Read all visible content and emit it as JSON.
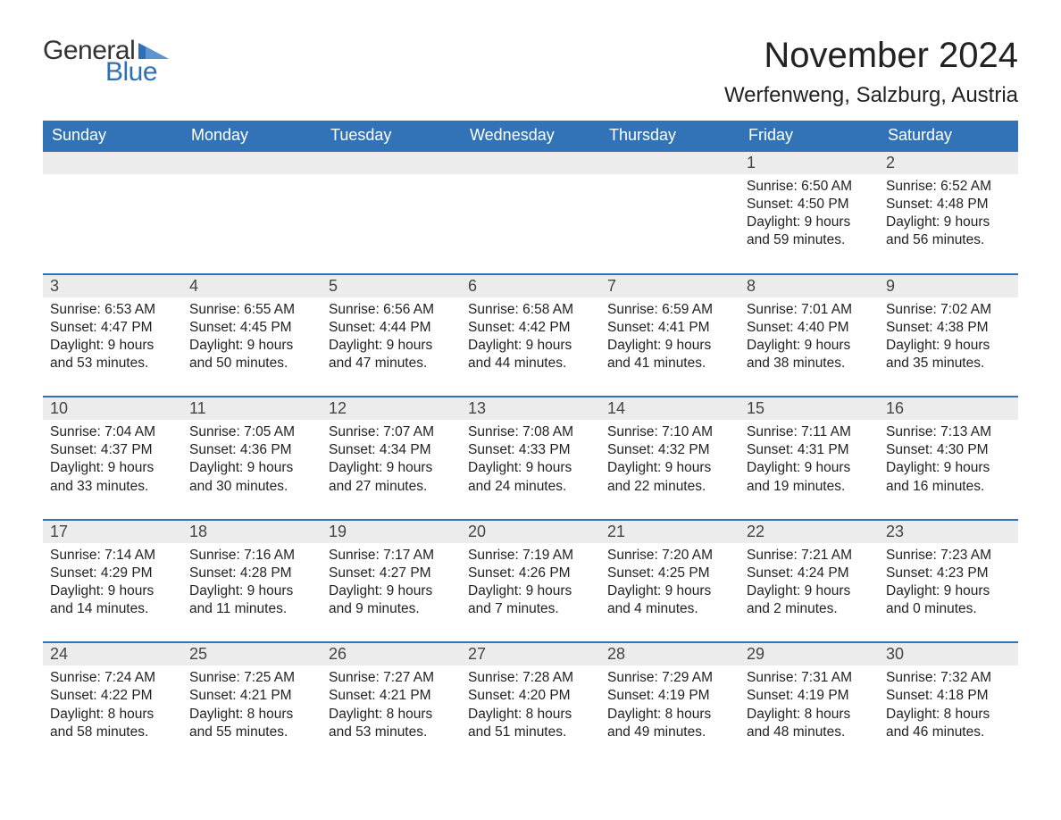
{
  "logo": {
    "text1": "General",
    "text2": "Blue",
    "color1": "#333333",
    "color2": "#2f6fb5",
    "triangle_color": "#2f6fb5"
  },
  "title": "November 2024",
  "location": "Werfenweng, Salzburg, Austria",
  "colors": {
    "header_bg": "#3273b8",
    "header_text": "#ffffff",
    "daynum_bg": "#ececec",
    "rule": "#3273b8",
    "body_bg": "#ffffff",
    "text": "#222222"
  },
  "typography": {
    "title_fontsize": 40,
    "location_fontsize": 24,
    "weekday_fontsize": 18,
    "daynum_fontsize": 18,
    "body_fontsize": 15.5,
    "font_family": "Arial"
  },
  "weekdays": [
    "Sunday",
    "Monday",
    "Tuesday",
    "Wednesday",
    "Thursday",
    "Friday",
    "Saturday"
  ],
  "weeks": [
    [
      {
        "empty": true
      },
      {
        "empty": true
      },
      {
        "empty": true
      },
      {
        "empty": true
      },
      {
        "empty": true
      },
      {
        "day": "1",
        "sunrise": "Sunrise: 6:50 AM",
        "sunset": "Sunset: 4:50 PM",
        "daylight1": "Daylight: 9 hours",
        "daylight2": "and 59 minutes."
      },
      {
        "day": "2",
        "sunrise": "Sunrise: 6:52 AM",
        "sunset": "Sunset: 4:48 PM",
        "daylight1": "Daylight: 9 hours",
        "daylight2": "and 56 minutes."
      }
    ],
    [
      {
        "day": "3",
        "sunrise": "Sunrise: 6:53 AM",
        "sunset": "Sunset: 4:47 PM",
        "daylight1": "Daylight: 9 hours",
        "daylight2": "and 53 minutes."
      },
      {
        "day": "4",
        "sunrise": "Sunrise: 6:55 AM",
        "sunset": "Sunset: 4:45 PM",
        "daylight1": "Daylight: 9 hours",
        "daylight2": "and 50 minutes."
      },
      {
        "day": "5",
        "sunrise": "Sunrise: 6:56 AM",
        "sunset": "Sunset: 4:44 PM",
        "daylight1": "Daylight: 9 hours",
        "daylight2": "and 47 minutes."
      },
      {
        "day": "6",
        "sunrise": "Sunrise: 6:58 AM",
        "sunset": "Sunset: 4:42 PM",
        "daylight1": "Daylight: 9 hours",
        "daylight2": "and 44 minutes."
      },
      {
        "day": "7",
        "sunrise": "Sunrise: 6:59 AM",
        "sunset": "Sunset: 4:41 PM",
        "daylight1": "Daylight: 9 hours",
        "daylight2": "and 41 minutes."
      },
      {
        "day": "8",
        "sunrise": "Sunrise: 7:01 AM",
        "sunset": "Sunset: 4:40 PM",
        "daylight1": "Daylight: 9 hours",
        "daylight2": "and 38 minutes."
      },
      {
        "day": "9",
        "sunrise": "Sunrise: 7:02 AM",
        "sunset": "Sunset: 4:38 PM",
        "daylight1": "Daylight: 9 hours",
        "daylight2": "and 35 minutes."
      }
    ],
    [
      {
        "day": "10",
        "sunrise": "Sunrise: 7:04 AM",
        "sunset": "Sunset: 4:37 PM",
        "daylight1": "Daylight: 9 hours",
        "daylight2": "and 33 minutes."
      },
      {
        "day": "11",
        "sunrise": "Sunrise: 7:05 AM",
        "sunset": "Sunset: 4:36 PM",
        "daylight1": "Daylight: 9 hours",
        "daylight2": "and 30 minutes."
      },
      {
        "day": "12",
        "sunrise": "Sunrise: 7:07 AM",
        "sunset": "Sunset: 4:34 PM",
        "daylight1": "Daylight: 9 hours",
        "daylight2": "and 27 minutes."
      },
      {
        "day": "13",
        "sunrise": "Sunrise: 7:08 AM",
        "sunset": "Sunset: 4:33 PM",
        "daylight1": "Daylight: 9 hours",
        "daylight2": "and 24 minutes."
      },
      {
        "day": "14",
        "sunrise": "Sunrise: 7:10 AM",
        "sunset": "Sunset: 4:32 PM",
        "daylight1": "Daylight: 9 hours",
        "daylight2": "and 22 minutes."
      },
      {
        "day": "15",
        "sunrise": "Sunrise: 7:11 AM",
        "sunset": "Sunset: 4:31 PM",
        "daylight1": "Daylight: 9 hours",
        "daylight2": "and 19 minutes."
      },
      {
        "day": "16",
        "sunrise": "Sunrise: 7:13 AM",
        "sunset": "Sunset: 4:30 PM",
        "daylight1": "Daylight: 9 hours",
        "daylight2": "and 16 minutes."
      }
    ],
    [
      {
        "day": "17",
        "sunrise": "Sunrise: 7:14 AM",
        "sunset": "Sunset: 4:29 PM",
        "daylight1": "Daylight: 9 hours",
        "daylight2": "and 14 minutes."
      },
      {
        "day": "18",
        "sunrise": "Sunrise: 7:16 AM",
        "sunset": "Sunset: 4:28 PM",
        "daylight1": "Daylight: 9 hours",
        "daylight2": "and 11 minutes."
      },
      {
        "day": "19",
        "sunrise": "Sunrise: 7:17 AM",
        "sunset": "Sunset: 4:27 PM",
        "daylight1": "Daylight: 9 hours",
        "daylight2": "and 9 minutes."
      },
      {
        "day": "20",
        "sunrise": "Sunrise: 7:19 AM",
        "sunset": "Sunset: 4:26 PM",
        "daylight1": "Daylight: 9 hours",
        "daylight2": "and 7 minutes."
      },
      {
        "day": "21",
        "sunrise": "Sunrise: 7:20 AM",
        "sunset": "Sunset: 4:25 PM",
        "daylight1": "Daylight: 9 hours",
        "daylight2": "and 4 minutes."
      },
      {
        "day": "22",
        "sunrise": "Sunrise: 7:21 AM",
        "sunset": "Sunset: 4:24 PM",
        "daylight1": "Daylight: 9 hours",
        "daylight2": "and 2 minutes."
      },
      {
        "day": "23",
        "sunrise": "Sunrise: 7:23 AM",
        "sunset": "Sunset: 4:23 PM",
        "daylight1": "Daylight: 9 hours",
        "daylight2": "and 0 minutes."
      }
    ],
    [
      {
        "day": "24",
        "sunrise": "Sunrise: 7:24 AM",
        "sunset": "Sunset: 4:22 PM",
        "daylight1": "Daylight: 8 hours",
        "daylight2": "and 58 minutes."
      },
      {
        "day": "25",
        "sunrise": "Sunrise: 7:25 AM",
        "sunset": "Sunset: 4:21 PM",
        "daylight1": "Daylight: 8 hours",
        "daylight2": "and 55 minutes."
      },
      {
        "day": "26",
        "sunrise": "Sunrise: 7:27 AM",
        "sunset": "Sunset: 4:21 PM",
        "daylight1": "Daylight: 8 hours",
        "daylight2": "and 53 minutes."
      },
      {
        "day": "27",
        "sunrise": "Sunrise: 7:28 AM",
        "sunset": "Sunset: 4:20 PM",
        "daylight1": "Daylight: 8 hours",
        "daylight2": "and 51 minutes."
      },
      {
        "day": "28",
        "sunrise": "Sunrise: 7:29 AM",
        "sunset": "Sunset: 4:19 PM",
        "daylight1": "Daylight: 8 hours",
        "daylight2": "and 49 minutes."
      },
      {
        "day": "29",
        "sunrise": "Sunrise: 7:31 AM",
        "sunset": "Sunset: 4:19 PM",
        "daylight1": "Daylight: 8 hours",
        "daylight2": "and 48 minutes."
      },
      {
        "day": "30",
        "sunrise": "Sunrise: 7:32 AM",
        "sunset": "Sunset: 4:18 PM",
        "daylight1": "Daylight: 8 hours",
        "daylight2": "and 46 minutes."
      }
    ]
  ]
}
